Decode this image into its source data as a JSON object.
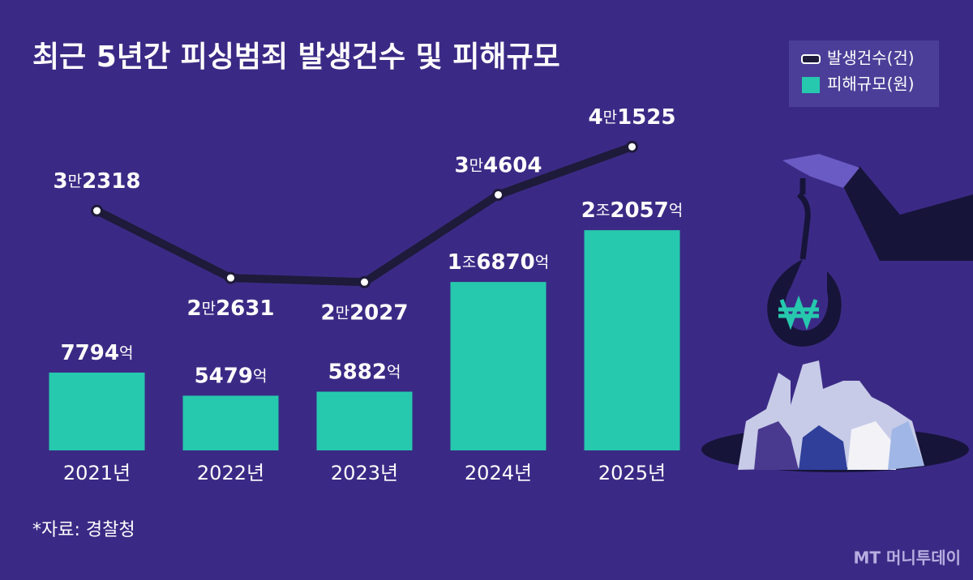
{
  "chart_data": {
    "type": "bar-line",
    "title": "최근 5년간 피싱범죄 발생건수 및 피해규모",
    "categories": [
      "2021년",
      "2022년",
      "2023년",
      "2024년",
      "2025년"
    ],
    "series": [
      {
        "name": "발생건수(건)",
        "type": "line",
        "axis": "y2",
        "color": "#1e1a3a",
        "values": [
          32318,
          22631,
          22027,
          34604,
          41525
        ],
        "value_labels": [
          "3만2318",
          "2만2631",
          "2만2027",
          "3만4604",
          "4만1525"
        ]
      },
      {
        "name": "피해규모(원)",
        "type": "bar",
        "axis": "y",
        "color": "#26c9ad",
        "values": [
          7794,
          5479,
          5882,
          16870,
          22057
        ],
        "value_labels": [
          "7794억",
          "5479억",
          "5882억",
          "1조6870억",
          "2조2057억"
        ]
      }
    ],
    "ylim": [
      0,
      37000
    ],
    "y2lim": [
      0,
      51000
    ],
    "source": "*자료: 경찰청",
    "brand": "MT 머니투데이"
  }
}
